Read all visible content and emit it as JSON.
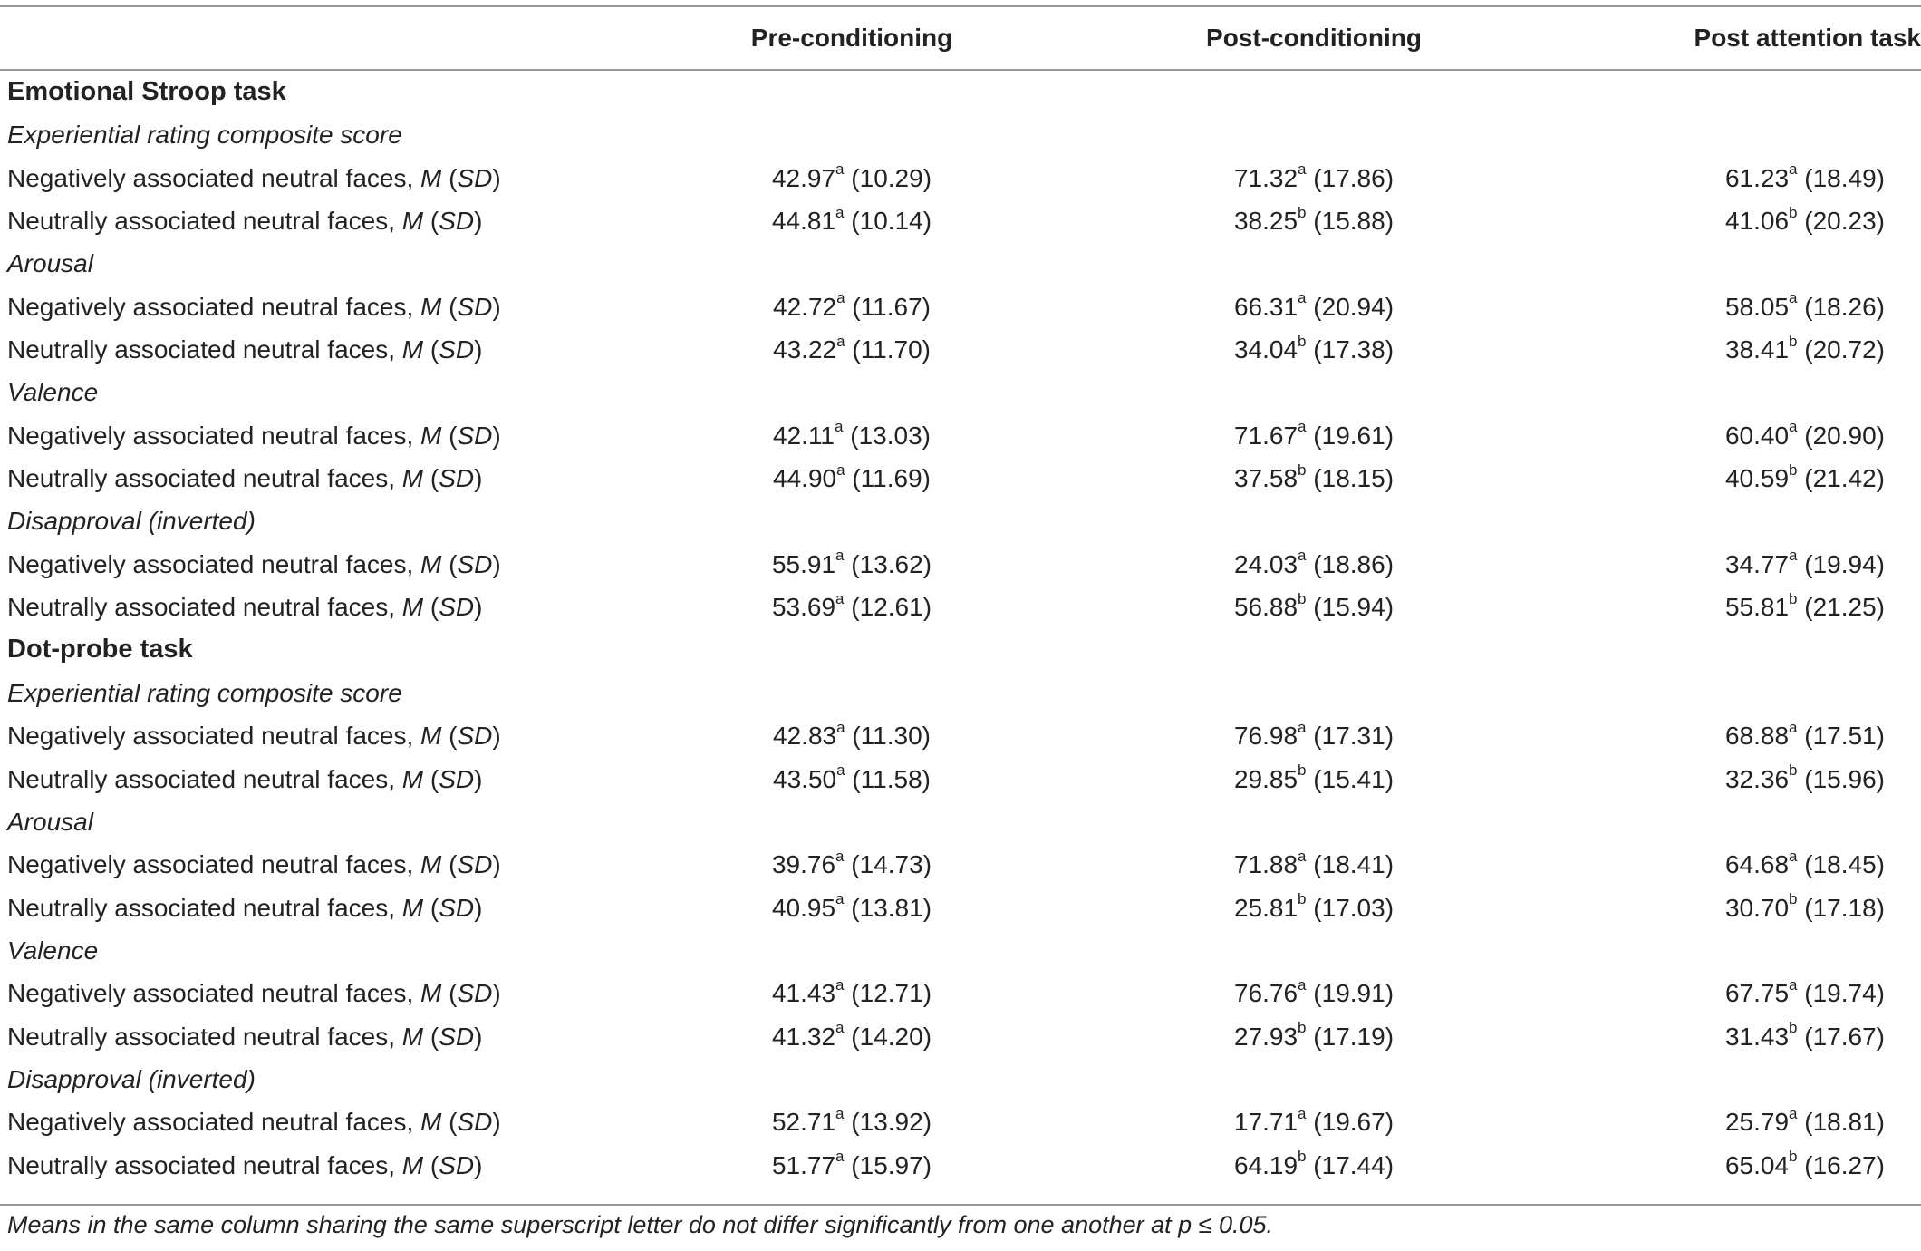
{
  "table": {
    "headers": [
      "",
      "Pre-conditioning",
      "Post-conditioning",
      "Post attention task"
    ],
    "sections": [
      {
        "title": "Emotional Stroop task",
        "groups": [
          {
            "name": "Experiential rating composite score",
            "rows": [
              {
                "label": "Negatively associated neutral faces, ",
                "cells": [
                  [
                    "42.97",
                    "a",
                    "(10.29)"
                  ],
                  [
                    "71.32",
                    "a",
                    "(17.86)"
                  ],
                  [
                    "61.23",
                    "a",
                    "(18.49)"
                  ]
                ]
              },
              {
                "label": "Neutrally associated neutral faces, ",
                "cells": [
                  [
                    "44.81",
                    "a",
                    "(10.14)"
                  ],
                  [
                    "38.25",
                    "b",
                    "(15.88)"
                  ],
                  [
                    "41.06",
                    "b",
                    "(20.23)"
                  ]
                ]
              }
            ]
          },
          {
            "name": "Arousal",
            "rows": [
              {
                "label": "Negatively associated neutral faces, ",
                "cells": [
                  [
                    "42.72",
                    "a",
                    "(11.67)"
                  ],
                  [
                    "66.31",
                    "a",
                    "(20.94)"
                  ],
                  [
                    "58.05",
                    "a",
                    "(18.26)"
                  ]
                ]
              },
              {
                "label": "Neutrally associated neutral faces, ",
                "cells": [
                  [
                    "43.22",
                    "a",
                    "(11.70)"
                  ],
                  [
                    "34.04",
                    "b",
                    "(17.38)"
                  ],
                  [
                    "38.41",
                    "b",
                    "(20.72)"
                  ]
                ]
              }
            ]
          },
          {
            "name": "Valence",
            "rows": [
              {
                "label": "Negatively associated neutral faces, ",
                "cells": [
                  [
                    "42.11",
                    "a",
                    "(13.03)"
                  ],
                  [
                    "71.67",
                    "a",
                    "(19.61)"
                  ],
                  [
                    "60.40",
                    "a",
                    "(20.90)"
                  ]
                ]
              },
              {
                "label": "Neutrally associated neutral faces, ",
                "cells": [
                  [
                    "44.90",
                    "a",
                    "(11.69)"
                  ],
                  [
                    "37.58",
                    "b",
                    "(18.15)"
                  ],
                  [
                    "40.59",
                    "b",
                    "(21.42)"
                  ]
                ]
              }
            ]
          },
          {
            "name": "Disapproval (inverted)",
            "rows": [
              {
                "label": "Negatively associated neutral faces, ",
                "cells": [
                  [
                    "55.91",
                    "a",
                    "(13.62)"
                  ],
                  [
                    "24.03",
                    "a",
                    "(18.86)"
                  ],
                  [
                    "34.77",
                    "a",
                    "(19.94)"
                  ]
                ]
              },
              {
                "label": "Neutrally associated neutral faces, ",
                "cells": [
                  [
                    "53.69",
                    "a",
                    "(12.61)"
                  ],
                  [
                    "56.88",
                    "b",
                    "(15.94)"
                  ],
                  [
                    "55.81",
                    "b",
                    "(21.25)"
                  ]
                ]
              }
            ]
          }
        ]
      },
      {
        "title": "Dot-probe task",
        "groups": [
          {
            "name": "Experiential rating composite score",
            "rows": [
              {
                "label": "Negatively associated neutral faces, ",
                "cells": [
                  [
                    "42.83",
                    "a",
                    "(11.30)"
                  ],
                  [
                    "76.98",
                    "a",
                    "(17.31)"
                  ],
                  [
                    "68.88",
                    "a",
                    "(17.51)"
                  ]
                ]
              },
              {
                "label": "Neutrally associated neutral faces, ",
                "cells": [
                  [
                    "43.50",
                    "a",
                    "(11.58)"
                  ],
                  [
                    "29.85",
                    "b",
                    "(15.41)"
                  ],
                  [
                    "32.36",
                    "b",
                    "(15.96)"
                  ]
                ]
              }
            ]
          },
          {
            "name": "Arousal",
            "rows": [
              {
                "label": "Negatively associated neutral faces, ",
                "cells": [
                  [
                    "39.76",
                    "a",
                    "(14.73)"
                  ],
                  [
                    "71.88",
                    "a",
                    "(18.41)"
                  ],
                  [
                    "64.68",
                    "a",
                    "(18.45)"
                  ]
                ]
              },
              {
                "label": "Neutrally associated neutral faces, ",
                "cells": [
                  [
                    "40.95",
                    "a",
                    "(13.81)"
                  ],
                  [
                    "25.81",
                    "b",
                    "(17.03)"
                  ],
                  [
                    "30.70",
                    "b",
                    "(17.18)"
                  ]
                ]
              }
            ]
          },
          {
            "name": "Valence",
            "rows": [
              {
                "label": "Negatively associated neutral faces, ",
                "cells": [
                  [
                    "41.43",
                    "a",
                    "(12.71)"
                  ],
                  [
                    "76.76",
                    "a",
                    "(19.91)"
                  ],
                  [
                    "67.75",
                    "a",
                    "(19.74)"
                  ]
                ]
              },
              {
                "label": "Neutrally associated neutral faces, ",
                "cells": [
                  [
                    "41.32",
                    "a",
                    "(14.20)"
                  ],
                  [
                    "27.93",
                    "b",
                    "(17.19)"
                  ],
                  [
                    "31.43",
                    "b",
                    "(17.67)"
                  ]
                ]
              }
            ]
          },
          {
            "name": "Disapproval (inverted)",
            "rows": [
              {
                "label": "Negatively associated neutral faces, ",
                "cells": [
                  [
                    "52.71",
                    "a",
                    "(13.92)"
                  ],
                  [
                    "17.71",
                    "a",
                    "(19.67)"
                  ],
                  [
                    "25.79",
                    "a",
                    "(18.81)"
                  ]
                ]
              },
              {
                "label": "Neutrally associated neutral faces, ",
                "cells": [
                  [
                    "51.77",
                    "a",
                    "(15.97)"
                  ],
                  [
                    "64.19",
                    "b",
                    "(17.44)"
                  ],
                  [
                    "65.04",
                    "b",
                    "(16.27)"
                  ]
                ]
              }
            ]
          }
        ]
      }
    ],
    "stat_label": {
      "mean": "M",
      "open": " (",
      "sd": "SD",
      "close": ")"
    }
  },
  "footnote": "Means in the same column sharing the same superscript letter do not differ significantly from one another at p ≤ 0.05."
}
